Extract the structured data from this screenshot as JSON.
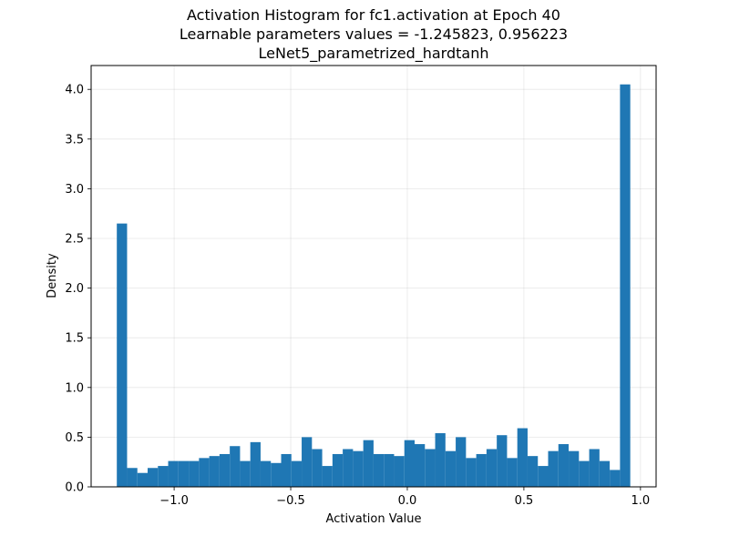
{
  "chart_data": {
    "type": "histogram",
    "title_lines": [
      "Activation Histogram for fc1.activation at Epoch 40",
      "Learnable parameters values = -1.245823, 0.956223",
      "LeNet5_parametrized_hardtanh"
    ],
    "xlabel": "Activation Value",
    "ylabel": "Density",
    "xlim": [
      -1.356,
      1.067
    ],
    "ylim": [
      0,
      4.24
    ],
    "grid": true,
    "bar_color": "#1f77b4",
    "bin_range": [
      -1.245823,
      0.956223
    ],
    "bins": 50,
    "values": [
      2.65,
      0.19,
      0.14,
      0.19,
      0.21,
      0.26,
      0.26,
      0.26,
      0.29,
      0.31,
      0.33,
      0.41,
      0.26,
      0.45,
      0.26,
      0.24,
      0.33,
      0.26,
      0.5,
      0.38,
      0.21,
      0.33,
      0.38,
      0.36,
      0.47,
      0.33,
      0.33,
      0.31,
      0.47,
      0.43,
      0.38,
      0.54,
      0.36,
      0.5,
      0.29,
      0.33,
      0.38,
      0.52,
      0.29,
      0.59,
      0.31,
      0.21,
      0.36,
      0.43,
      0.36,
      0.26,
      0.38,
      0.26,
      0.17,
      4.05
    ],
    "xticks": [
      -1.0,
      -0.5,
      0.0,
      0.5,
      1.0
    ],
    "xtick_labels": [
      "−1.0",
      "−0.5",
      "0.0",
      "0.5",
      "1.0"
    ],
    "yticks": [
      0.0,
      0.5,
      1.0,
      1.5,
      2.0,
      2.5,
      3.0,
      3.5,
      4.0
    ],
    "ytick_labels": [
      "0.0",
      "0.5",
      "1.0",
      "1.5",
      "2.0",
      "2.5",
      "3.0",
      "3.5",
      "4.0"
    ]
  }
}
